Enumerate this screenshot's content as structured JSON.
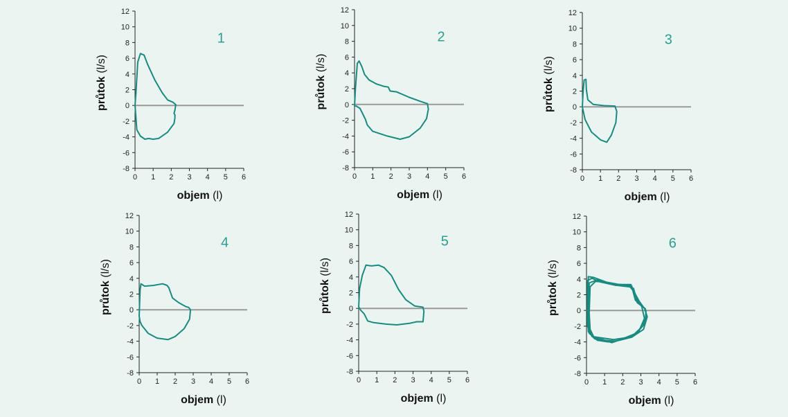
{
  "style": {
    "background": "#eaf4f1",
    "curve_color": "#1a8a80",
    "zero_line_color": "#999999",
    "label_color": "#2b9d91",
    "axis_color": "#222222"
  },
  "chart_data": [
    {
      "type": "line",
      "panel_label": "1",
      "xlabel_bold": "objem",
      "xlabel_unit": "(l)",
      "ylabel_bold": "průtok",
      "ylabel_unit": "(l/s)",
      "xlim": [
        0,
        6
      ],
      "ylim": [
        -8,
        12
      ],
      "xticks": [
        "0",
        "1",
        "2",
        "3",
        "4",
        "5",
        "6"
      ],
      "yticks": [
        "-8",
        "-6",
        "-4",
        "-2",
        "0",
        "2",
        "4",
        "6",
        "8",
        "10",
        "12"
      ],
      "zero_line": true,
      "loops": [
        [
          [
            0,
            0
          ],
          [
            0.05,
            1.5
          ],
          [
            0.15,
            5.5
          ],
          [
            0.3,
            6.6
          ],
          [
            0.5,
            6.4
          ],
          [
            0.7,
            5.2
          ],
          [
            1.1,
            3.2
          ],
          [
            1.5,
            1.6
          ],
          [
            1.8,
            0.7
          ],
          [
            2.1,
            0.4
          ],
          [
            2.25,
            0.1
          ],
          [
            2.2,
            -0.6
          ],
          [
            2.15,
            -1.0
          ],
          [
            2.2,
            -1.2
          ],
          [
            2.2,
            -1.6
          ],
          [
            2.15,
            -2.3
          ],
          [
            1.8,
            -3.4
          ],
          [
            1.3,
            -4.2
          ],
          [
            1.0,
            -4.3
          ],
          [
            0.75,
            -4.2
          ],
          [
            0.55,
            -4.3
          ],
          [
            0.3,
            -3.9
          ],
          [
            0.1,
            -3.1
          ],
          [
            0.05,
            -1.5
          ],
          [
            0,
            0
          ]
        ]
      ]
    },
    {
      "type": "line",
      "panel_label": "2",
      "xlabel_bold": "objem",
      "xlabel_unit": "(l)",
      "ylabel_bold": "průtok",
      "ylabel_unit": "(l/s)",
      "xlim": [
        0,
        6
      ],
      "ylim": [
        -8,
        12
      ],
      "xticks": [
        "0",
        "1",
        "2",
        "3",
        "4",
        "5",
        "6"
      ],
      "yticks": [
        "-8",
        "-6",
        "-4",
        "-2",
        "0",
        "2",
        "4",
        "6",
        "8",
        "10",
        "12"
      ],
      "zero_line": true,
      "loops": [
        [
          [
            0,
            -0.2
          ],
          [
            0.05,
            2.0
          ],
          [
            0.15,
            5.2
          ],
          [
            0.25,
            5.5
          ],
          [
            0.4,
            4.8
          ],
          [
            0.55,
            3.8
          ],
          [
            0.8,
            3.1
          ],
          [
            1.2,
            2.6
          ],
          [
            1.6,
            2.3
          ],
          [
            1.85,
            2.2
          ],
          [
            1.95,
            1.7
          ],
          [
            2.3,
            1.6
          ],
          [
            3.0,
            0.9
          ],
          [
            3.6,
            0.4
          ],
          [
            4.0,
            0.1
          ],
          [
            4.05,
            -0.6
          ],
          [
            3.95,
            -1.8
          ],
          [
            3.6,
            -3.0
          ],
          [
            3.0,
            -4.1
          ],
          [
            2.5,
            -4.4
          ],
          [
            1.8,
            -4.0
          ],
          [
            1.0,
            -3.4
          ],
          [
            0.7,
            -2.6
          ],
          [
            0.6,
            -1.9
          ],
          [
            0.45,
            -1.2
          ],
          [
            0.3,
            -0.5
          ],
          [
            0.1,
            -0.2
          ],
          [
            0,
            -0.2
          ]
        ]
      ]
    },
    {
      "type": "line",
      "panel_label": "3",
      "xlabel_bold": "objem",
      "xlabel_unit": "(l)",
      "ylabel_bold": "průtok",
      "ylabel_unit": "(l/s)",
      "xlim": [
        0,
        6
      ],
      "ylim": [
        -8,
        12
      ],
      "xticks": [
        "0",
        "1",
        "2",
        "3",
        "4",
        "5",
        "6"
      ],
      "yticks": [
        "-8",
        "-6",
        "-4",
        "-2",
        "0",
        "2",
        "4",
        "6",
        "8",
        "10",
        "12"
      ],
      "zero_line": true,
      "loops": [
        [
          [
            0,
            0
          ],
          [
            0.05,
            2.2
          ],
          [
            0.1,
            3.4
          ],
          [
            0.2,
            3.5
          ],
          [
            0.22,
            2.2
          ],
          [
            0.3,
            0.9
          ],
          [
            0.6,
            0.3
          ],
          [
            1.2,
            0.15
          ],
          [
            1.8,
            0.1
          ],
          [
            1.9,
            -0.6
          ],
          [
            1.85,
            -2.0
          ],
          [
            1.6,
            -3.6
          ],
          [
            1.35,
            -4.5
          ],
          [
            1.0,
            -4.2
          ],
          [
            0.5,
            -3.2
          ],
          [
            0.15,
            -1.6
          ],
          [
            0,
            0
          ]
        ]
      ]
    },
    {
      "type": "line",
      "panel_label": "4",
      "xlabel_bold": "objem",
      "xlabel_unit": "(l)",
      "ylabel_bold": "průtok",
      "ylabel_unit": "(l/s)",
      "xlim": [
        0,
        6
      ],
      "ylim": [
        -8,
        12
      ],
      "xticks": [
        "0",
        "1",
        "2",
        "3",
        "4",
        "5",
        "6"
      ],
      "yticks": [
        "-8",
        "-6",
        "-4",
        "-2",
        "0",
        "2",
        "4",
        "6",
        "8",
        "10",
        "12"
      ],
      "zero_line": true,
      "loops": [
        [
          [
            0,
            -0.8
          ],
          [
            0.05,
            2.5
          ],
          [
            0.1,
            3.3
          ],
          [
            0.3,
            3.0
          ],
          [
            0.8,
            3.1
          ],
          [
            1.3,
            3.3
          ],
          [
            1.55,
            3.1
          ],
          [
            1.65,
            2.8
          ],
          [
            1.85,
            1.5
          ],
          [
            2.2,
            0.9
          ],
          [
            2.6,
            0.4
          ],
          [
            2.75,
            0.3
          ],
          [
            2.85,
            0.0
          ],
          [
            2.8,
            -1.2
          ],
          [
            2.5,
            -2.4
          ],
          [
            2.0,
            -3.4
          ],
          [
            1.6,
            -3.8
          ],
          [
            1.0,
            -3.6
          ],
          [
            0.5,
            -3.0
          ],
          [
            0.15,
            -2.0
          ],
          [
            0.05,
            -1.5
          ],
          [
            0,
            -0.8
          ]
        ]
      ]
    },
    {
      "type": "line",
      "panel_label": "5",
      "xlabel_bold": "objem",
      "xlabel_unit": "(l)",
      "ylabel_bold": "průtok",
      "ylabel_unit": "(l/s)",
      "xlim": [
        0,
        6
      ],
      "ylim": [
        -8,
        12
      ],
      "xticks": [
        "0",
        "1",
        "2",
        "3",
        "4",
        "5",
        "6"
      ],
      "yticks": [
        "-8",
        "-6",
        "-4",
        "-2",
        "0",
        "2",
        "4",
        "6",
        "8",
        "10",
        "12"
      ],
      "zero_line": true,
      "loops": [
        [
          [
            0,
            0.2
          ],
          [
            0.05,
            2.5
          ],
          [
            0.2,
            4.2
          ],
          [
            0.4,
            5.5
          ],
          [
            0.7,
            5.4
          ],
          [
            1.1,
            5.5
          ],
          [
            1.4,
            5.2
          ],
          [
            1.8,
            4.2
          ],
          [
            2.2,
            2.4
          ],
          [
            2.6,
            1.1
          ],
          [
            3.1,
            0.3
          ],
          [
            3.55,
            0.15
          ],
          [
            3.6,
            -0.4
          ],
          [
            3.55,
            -1.7
          ],
          [
            3.2,
            -1.7
          ],
          [
            2.8,
            -1.9
          ],
          [
            2.1,
            -2.1
          ],
          [
            1.5,
            -2.0
          ],
          [
            0.8,
            -1.8
          ],
          [
            0.5,
            -1.6
          ],
          [
            0.3,
            -0.7
          ],
          [
            0.1,
            -0.2
          ],
          [
            0,
            0.2
          ]
        ]
      ]
    },
    {
      "type": "line",
      "panel_label": "6",
      "xlabel_bold": "objem",
      "xlabel_unit": "(l)",
      "ylabel_bold": "průtok",
      "ylabel_unit": "(l/s)",
      "xlim": [
        0,
        6
      ],
      "ylim": [
        -8,
        12
      ],
      "xticks": [
        "0",
        "1",
        "2",
        "3",
        "4",
        "5",
        "6"
      ],
      "yticks": [
        "-8",
        "-6",
        "-4",
        "-2",
        "0",
        "2",
        "4",
        "6",
        "8",
        "10",
        "12"
      ],
      "zero_line": true,
      "loops": [
        [
          [
            0.05,
            0.3
          ],
          [
            0.05,
            3.8
          ],
          [
            0.3,
            4.1
          ],
          [
            0.8,
            3.6
          ],
          [
            1.4,
            3.3
          ],
          [
            2.0,
            3.1
          ],
          [
            2.4,
            3.0
          ],
          [
            2.55,
            2.6
          ],
          [
            2.7,
            1.3
          ],
          [
            3.0,
            0.7
          ],
          [
            3.25,
            0.2
          ],
          [
            3.3,
            -0.6
          ],
          [
            3.1,
            -2.0
          ],
          [
            2.6,
            -3.1
          ],
          [
            2.0,
            -3.6
          ],
          [
            1.4,
            -4.1
          ],
          [
            0.9,
            -3.7
          ],
          [
            0.4,
            -3.5
          ],
          [
            0.1,
            -2.7
          ],
          [
            0.05,
            0.3
          ]
        ],
        [
          [
            0.1,
            0.0
          ],
          [
            0.15,
            3.5
          ],
          [
            0.6,
            3.9
          ],
          [
            1.2,
            3.4
          ],
          [
            1.9,
            3.3
          ],
          [
            2.5,
            3.1
          ],
          [
            2.6,
            2.2
          ],
          [
            2.8,
            1.0
          ],
          [
            3.2,
            0.3
          ],
          [
            3.35,
            -0.8
          ],
          [
            3.15,
            -2.4
          ],
          [
            2.5,
            -3.4
          ],
          [
            1.8,
            -3.8
          ],
          [
            1.2,
            -4.0
          ],
          [
            0.6,
            -3.8
          ],
          [
            0.15,
            -2.9
          ],
          [
            0.1,
            0.0
          ]
        ],
        [
          [
            0.15,
            -0.3
          ],
          [
            0.2,
            3.0
          ],
          [
            0.5,
            3.7
          ],
          [
            1.0,
            3.6
          ],
          [
            1.6,
            3.2
          ],
          [
            2.3,
            3.1
          ],
          [
            2.6,
            2.8
          ],
          [
            2.75,
            1.5
          ],
          [
            3.05,
            0.5
          ],
          [
            3.2,
            -1.0
          ],
          [
            2.9,
            -2.6
          ],
          [
            2.3,
            -3.5
          ],
          [
            1.6,
            -3.9
          ],
          [
            1.0,
            -3.8
          ],
          [
            0.45,
            -3.6
          ],
          [
            0.2,
            -2.4
          ],
          [
            0.15,
            -0.3
          ]
        ],
        [
          [
            0.05,
            -0.5
          ],
          [
            0.1,
            4.3
          ],
          [
            0.4,
            4.2
          ],
          [
            1.1,
            3.6
          ],
          [
            1.8,
            3.3
          ],
          [
            2.45,
            3.3
          ],
          [
            2.6,
            2.5
          ],
          [
            2.9,
            1.2
          ],
          [
            3.28,
            0.0
          ],
          [
            3.25,
            -1.6
          ],
          [
            2.75,
            -2.9
          ],
          [
            2.1,
            -3.5
          ],
          [
            1.5,
            -3.7
          ],
          [
            0.85,
            -3.5
          ],
          [
            0.3,
            -3.3
          ],
          [
            0.05,
            -2.0
          ],
          [
            0.05,
            -0.5
          ]
        ]
      ]
    }
  ]
}
